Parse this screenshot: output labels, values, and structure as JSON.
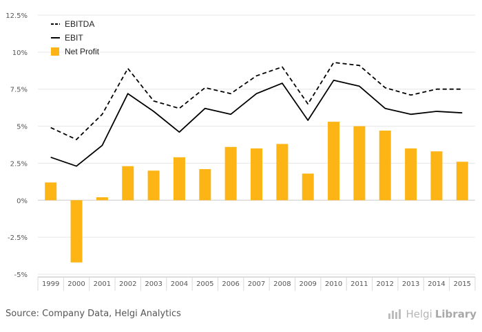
{
  "chart_data": {
    "type": "bar+line",
    "categories": [
      "1999",
      "2000",
      "2001",
      "2002",
      "2003",
      "2004",
      "2005",
      "2006",
      "2007",
      "2008",
      "2009",
      "2010",
      "2011",
      "2012",
      "2013",
      "2014",
      "2015"
    ],
    "series": [
      {
        "name": "EBITDA",
        "type": "line",
        "style": "dashed",
        "color": "#000000",
        "values": [
          4.9,
          4.1,
          5.8,
          8.9,
          6.7,
          6.2,
          7.6,
          7.2,
          8.4,
          9.0,
          6.5,
          9.3,
          9.1,
          7.6,
          7.1,
          7.5,
          7.5
        ]
      },
      {
        "name": "EBIT",
        "type": "line",
        "style": "solid",
        "color": "#000000",
        "values": [
          2.9,
          2.3,
          3.7,
          7.2,
          6.0,
          4.6,
          6.2,
          5.8,
          7.2,
          7.9,
          5.4,
          8.1,
          7.7,
          6.2,
          5.8,
          6.0,
          5.9
        ]
      },
      {
        "name": "Net Profit",
        "type": "bar",
        "color": "#FDB515",
        "values": [
          1.2,
          -4.2,
          0.2,
          2.3,
          2.0,
          2.9,
          2.1,
          3.6,
          3.5,
          3.8,
          1.8,
          5.3,
          5.0,
          4.7,
          3.5,
          3.3,
          2.6
        ]
      }
    ],
    "y_ticks": [
      "12.5%",
      "10%",
      "7.5%",
      "5%",
      "2.5%",
      "0%",
      "-2.5%",
      "-5%"
    ],
    "y_tick_values": [
      12.5,
      10,
      7.5,
      5,
      2.5,
      0,
      -2.5,
      -5
    ],
    "ylim": [
      -5,
      12.5
    ],
    "legend_position": "top-left",
    "grid": true
  },
  "footer": {
    "source": "Source: Company Data, Helgi Analytics",
    "brand_light": "Helgi",
    "brand_bold": "Library"
  }
}
